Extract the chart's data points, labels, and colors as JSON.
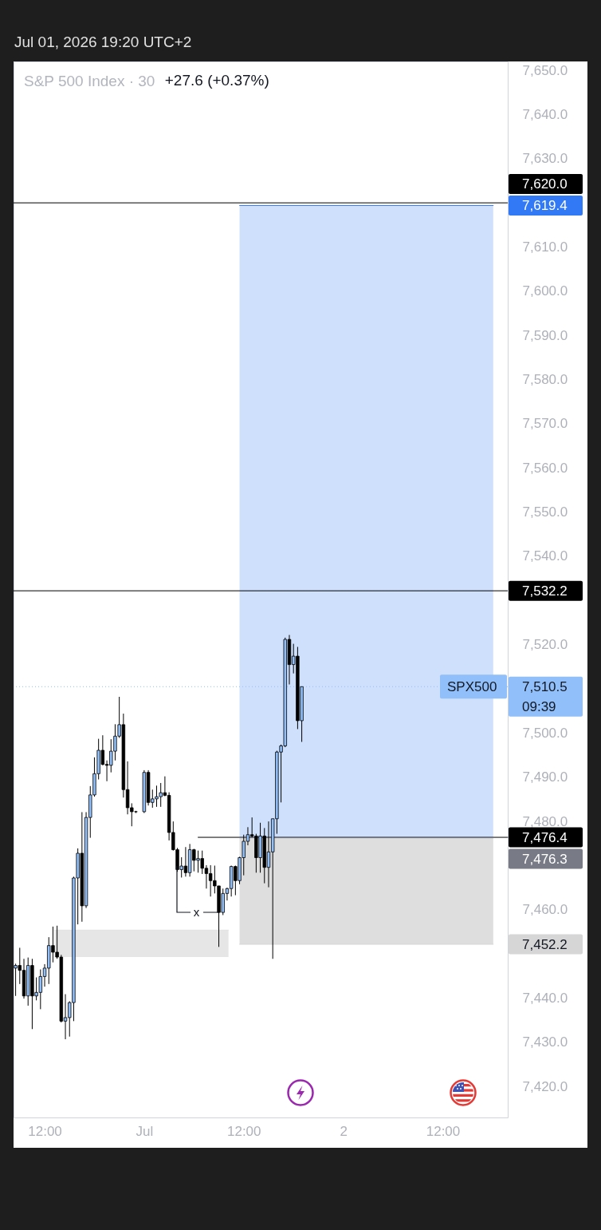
{
  "chart_data": {
    "type": "candlestick",
    "title": "S&P 500 Index · 30",
    "x": [
      "2026-06-30T08:30",
      "2026-06-30T09:00",
      "2026-06-30T09:30",
      "2026-06-30T10:00",
      "2026-06-30T10:30",
      "2026-06-30T11:00",
      "2026-06-30T11:30",
      "2026-06-30T12:00",
      "2026-06-30T12:30",
      "2026-06-30T13:00",
      "2026-06-30T13:30",
      "2026-06-30T14:00",
      "2026-06-30T14:30",
      "2026-06-30T15:00",
      "2026-06-30T15:30",
      "2026-06-30T16:00",
      "2026-06-30T16:30",
      "2026-06-30T17:00",
      "2026-06-30T17:30",
      "2026-06-30T18:00",
      "2026-06-30T18:30",
      "2026-06-30T19:00",
      "2026-06-30T19:30",
      "2026-06-30T20:00",
      "2026-06-30T20:30",
      "2026-06-30T21:00",
      "2026-06-30T21:30",
      "2026-06-30T22:00",
      "2026-06-30T22:30",
      "2026-06-30T23:00",
      "2026-07-01T00:00",
      "2026-07-01T00:30",
      "2026-07-01T01:00",
      "2026-07-01T01:30",
      "2026-07-01T02:00",
      "2026-07-01T02:30",
      "2026-07-01T03:00",
      "2026-07-01T03:30",
      "2026-07-01T04:00",
      "2026-07-01T04:30",
      "2026-07-01T05:00",
      "2026-07-01T05:30",
      "2026-07-01T06:00",
      "2026-07-01T06:30",
      "2026-07-01T07:00",
      "2026-07-01T07:30",
      "2026-07-01T08:00",
      "2026-07-01T08:30",
      "2026-07-01T09:00",
      "2026-07-01T09:30",
      "2026-07-01T10:00",
      "2026-07-01T10:30",
      "2026-07-01T11:00",
      "2026-07-01T11:30",
      "2026-07-01T12:00",
      "2026-07-01T12:30",
      "2026-07-01T13:00",
      "2026-07-01T13:30",
      "2026-07-01T14:00",
      "2026-07-01T14:30",
      "2026-07-01T15:00",
      "2026-07-01T15:30",
      "2026-07-01T16:00",
      "2026-07-01T16:30",
      "2026-07-01T17:00",
      "2026-07-01T17:30",
      "2026-07-01T18:00",
      "2026-07-01T18:30",
      "2026-07-01T19:00"
    ],
    "ohlc": [
      [
        7446.8,
        7447.8,
        7440.5,
        7447.4
      ],
      [
        7447.4,
        7451.4,
        7443.2,
        7446.3
      ],
      [
        7446.3,
        7448.9,
        7439.9,
        7440.5
      ],
      [
        7440.5,
        7449.2,
        7438.3,
        7447.4
      ],
      [
        7447.4,
        7448.9,
        7433.0,
        7440.5
      ],
      [
        7440.5,
        7444.7,
        7439.5,
        7441.3
      ],
      [
        7441.3,
        7446.5,
        7437.5,
        7444.9
      ],
      [
        7444.9,
        7447.7,
        7442.6,
        7446.8
      ],
      [
        7446.8,
        7453.8,
        7443.2,
        7451.9
      ],
      [
        7451.9,
        7456.2,
        7448.1,
        7450.4
      ],
      [
        7450.4,
        7456.4,
        7448.9,
        7449.3
      ],
      [
        7449.3,
        7449.8,
        7434.5,
        7434.8
      ],
      [
        7434.8,
        7440.9,
        7430.7,
        7435.6
      ],
      [
        7435.6,
        7439.3,
        7431.3,
        7439.0
      ],
      [
        7439.0,
        7467.5,
        7434.8,
        7467.2
      ],
      [
        7467.2,
        7473.9,
        7456.7,
        7472.8
      ],
      [
        7472.8,
        7482.1,
        7457.3,
        7460.9
      ],
      [
        7460.9,
        7482.1,
        7460.4,
        7480.9
      ],
      [
        7480.9,
        7488.0,
        7476.3,
        7486.0
      ],
      [
        7486.0,
        7494.5,
        7485.6,
        7490.8
      ],
      [
        7490.8,
        7498.7,
        7489.5,
        7496.1
      ],
      [
        7496.1,
        7499.5,
        7492.7,
        7492.9
      ],
      [
        7492.9,
        7493.8,
        7489.1,
        7492.7
      ],
      [
        7492.7,
        7498.6,
        7491.1,
        7495.9
      ],
      [
        7495.9,
        7502.0,
        7493.8,
        7499.3
      ],
      [
        7499.3,
        7508.2,
        7498.9,
        7501.9
      ],
      [
        7501.9,
        7504.4,
        7485.4,
        7487.2
      ],
      [
        7487.2,
        7493.6,
        7481.6,
        7483.1
      ],
      [
        7483.1,
        7484.1,
        7478.9,
        7482.2
      ],
      [
        7482.2,
        7482.4,
        7481.9,
        7482.2
      ],
      [
        7482.2,
        7491.6,
        7481.9,
        7491.1
      ],
      [
        7491.1,
        7491.6,
        7483.6,
        7484.3
      ],
      [
        7484.3,
        7487.2,
        7483.1,
        7485.1
      ],
      [
        7485.1,
        7488.1,
        7483.3,
        7485.6
      ],
      [
        7485.6,
        7488.7,
        7483.3,
        7486.5
      ],
      [
        7486.5,
        7490.2,
        7485.7,
        7485.9
      ],
      [
        7485.9,
        7486.6,
        7475.7,
        7477.5
      ],
      [
        7477.5,
        7480.0,
        7473.4,
        7473.6
      ],
      [
        7473.6,
        7474.0,
        7468.6,
        7469.1
      ],
      [
        7469.1,
        7471.9,
        7467.3,
        7469.9
      ],
      [
        7469.9,
        7474.2,
        7467.5,
        7468.4
      ],
      [
        7468.4,
        7474.9,
        7467.5,
        7473.6
      ],
      [
        7473.6,
        7473.8,
        7468.7,
        7471.2
      ],
      [
        7471.2,
        7473.4,
        7468.4,
        7471.6
      ],
      [
        7471.6,
        7473.4,
        7468.1,
        7469.4
      ],
      [
        7469.4,
        7470.1,
        7464.8,
        7468.2
      ],
      [
        7468.2,
        7470.1,
        7463.0,
        7466.6
      ],
      [
        7466.6,
        7470.0,
        7463.7,
        7465.4
      ],
      [
        7465.4,
        7465.4,
        7451.6,
        7459.4
      ],
      [
        7459.4,
        7464.8,
        7458.8,
        7463.7
      ],
      [
        7463.7,
        7465.0,
        7462.1,
        7464.8
      ],
      [
        7464.8,
        7470.0,
        7463.0,
        7469.8
      ],
      [
        7469.8,
        7470.0,
        7463.3,
        7466.6
      ],
      [
        7466.6,
        7472.0,
        7465.8,
        7471.8
      ],
      [
        7471.8,
        7477.0,
        7467.8,
        7475.5
      ],
      [
        7475.5,
        7478.7,
        7474.6,
        7477.0
      ],
      [
        7477.0,
        7480.9,
        7476.4,
        7476.7
      ],
      [
        7476.7,
        7477.2,
        7468.4,
        7471.8
      ],
      [
        7471.8,
        7479.7,
        7468.4,
        7476.7
      ],
      [
        7476.7,
        7478.5,
        7466.0,
        7469.6
      ],
      [
        7469.6,
        7480.0,
        7465.1,
        7473.1
      ],
      [
        7473.1,
        7480.6,
        7448.9,
        7480.6
      ],
      [
        7480.6,
        7496.0,
        7477.2,
        7495.7
      ],
      [
        7495.7,
        7497.4,
        7484.3,
        7497.1
      ],
      [
        7497.1,
        7521.6,
        7496.8,
        7521.2
      ],
      [
        7521.2,
        7522.2,
        7511.0,
        7515.5
      ],
      [
        7515.5,
        7520.2,
        7513.5,
        7517.4
      ],
      [
        7517.4,
        7519.5,
        7500.9,
        7502.8
      ],
      [
        7502.8,
        7510.5,
        7498.0,
        7510.5
      ]
    ],
    "color": "#000000",
    "colors": [
      "#90bff9",
      "#000000",
      "#000000",
      "#90bff9",
      "#000000",
      "#90bff9",
      "#90bff9",
      "#90bff9",
      "#90bff9",
      "#000000",
      "#000000",
      "#000000",
      "#90bff9",
      "#90bff9",
      "#90bff9",
      "#90bff9",
      "#000000",
      "#90bff9",
      "#90bff9",
      "#90bff9",
      "#90bff9",
      "#000000",
      "#000000",
      "#90bff9",
      "#90bff9",
      "#90bff9",
      "#000000",
      "#000000",
      "#000000",
      "#000000",
      "#90bff9",
      "#000000",
      "#90bff9",
      "#90bff9",
      "#90bff9",
      "#000000",
      "#000000",
      "#000000",
      "#000000",
      "#90bff9",
      "#000000",
      "#90bff9",
      "#000000",
      "#90bff9",
      "#000000",
      "#000000",
      "#000000",
      "#000000",
      "#000000",
      "#90bff9",
      "#90bff9",
      "#90bff9",
      "#000000",
      "#90bff9",
      "#90bff9",
      "#90bff9",
      "#000000",
      "#000000",
      "#90bff9",
      "#000000",
      "#90bff9",
      "#90bff9",
      "#90bff9",
      "#90bff9",
      "#90bff9",
      "#000000",
      "#90bff9",
      "#000000",
      "#90bff9"
    ],
    "series": [
      {
        "type": "line",
        "x": [
          "2026-06-30T13:10",
          "2026-07-01T10:10"
        ],
        "values": [
          7455.4,
          7455.4
        ],
        "lower": [
          7449.3,
          7449.3
        ],
        "upper": [
          7455.4,
          7455.4
        ],
        "color": "#e2e2e2"
      },
      {
        "type": "line",
        "name": "7,619.4",
        "x": [
          "2026-07-01T11:30",
          "2026-07-02T18:05"
        ],
        "values": [
          7619.4,
          7619.4
        ],
        "lower": [
          7476.3,
          7476.3
        ],
        "upper": [
          7619.4,
          7619.4
        ],
        "color": "#3179f5"
      },
      {
        "type": "line",
        "name": "7,452.2",
        "x": [
          "2026-07-01T11:30",
          "2026-07-02T18:05"
        ],
        "values": [
          7452.2,
          7452.2
        ],
        "lower": [
          7452.2,
          7452.2
        ],
        "upper": [
          7476.3,
          7476.3
        ],
        "color": "#d6d6d6"
      },
      {
        "type": "line",
        "name": "7,476.4",
        "x": [
          "2026-07-01T06:30",
          "2026-07-02T19:50"
        ],
        "values": [
          7476.4,
          7476.4
        ],
        "color": "#000000"
      },
      {
        "type": "line",
        "name": "7,476.3",
        "x": [
          "2026-07-01T11:30",
          "2026-07-02T18:05"
        ],
        "values": [
          7476.3,
          7476.3
        ],
        "color": "#787b86"
      }
    ],
    "ref_lines": [
      {
        "axis": "y",
        "value": 7620.0,
        "label": "7,620.0",
        "color": "#000000"
      },
      {
        "axis": "y",
        "value": 7532.2,
        "label": "7,532.2",
        "color": "#000000"
      },
      {
        "axis": "y",
        "value": 7510.5,
        "label": "7,510.5",
        "color": "#90bff9",
        "line_style": "dotted"
      }
    ],
    "xlim": [
      "2026-06-30T08:15",
      "2026-07-02T19:50"
    ],
    "xticks": [
      {
        "value": "2026-06-30T12:00",
        "label": "12:00"
      },
      {
        "value": "2026-07-01T00:00",
        "label": "Jul"
      },
      {
        "value": "2026-07-01T12:00",
        "label": "12:00"
      },
      {
        "value": "2026-07-02T00:00",
        "label": "2"
      },
      {
        "value": "2026-07-02T12:00",
        "label": "12:00"
      }
    ],
    "ylim": [
      7413,
      7652
    ],
    "yticks": [
      {
        "value": 7420,
        "label": "7,420.0"
      },
      {
        "value": 7430,
        "label": "7,430.0"
      },
      {
        "value": 7440,
        "label": "7,440.0"
      },
      {
        "value": 7460,
        "label": "7,460.0"
      },
      {
        "value": 7480,
        "label": "7,480.0"
      },
      {
        "value": 7490,
        "label": "7,490.0"
      },
      {
        "value": 7500,
        "label": "7,500.0"
      },
      {
        "value": 7520,
        "label": "7,520.0"
      },
      {
        "value": 7540,
        "label": "7,540.0"
      },
      {
        "value": 7550,
        "label": "7,550.0"
      },
      {
        "value": 7560,
        "label": "7,560.0"
      },
      {
        "value": 7570,
        "label": "7,570.0"
      },
      {
        "value": 7580,
        "label": "7,580.0"
      },
      {
        "value": 7590,
        "label": "7,590.0"
      },
      {
        "value": 7600,
        "label": "7,600.0"
      },
      {
        "value": 7610,
        "label": "7,610.0"
      },
      {
        "value": 7630,
        "label": "7,630.0"
      },
      {
        "value": 7640,
        "label": "7,640.0"
      },
      {
        "value": 7650,
        "label": "7,650.0"
      }
    ],
    "annotations": [
      "Jul 01, 2026 19:20 UTC+2",
      "+27.6 (+0.37%)",
      "SPX500",
      "09:39",
      {
        "text": "x",
        "x": "2026-07-01T09:00",
        "y": 7459.4
      }
    ]
  }
}
